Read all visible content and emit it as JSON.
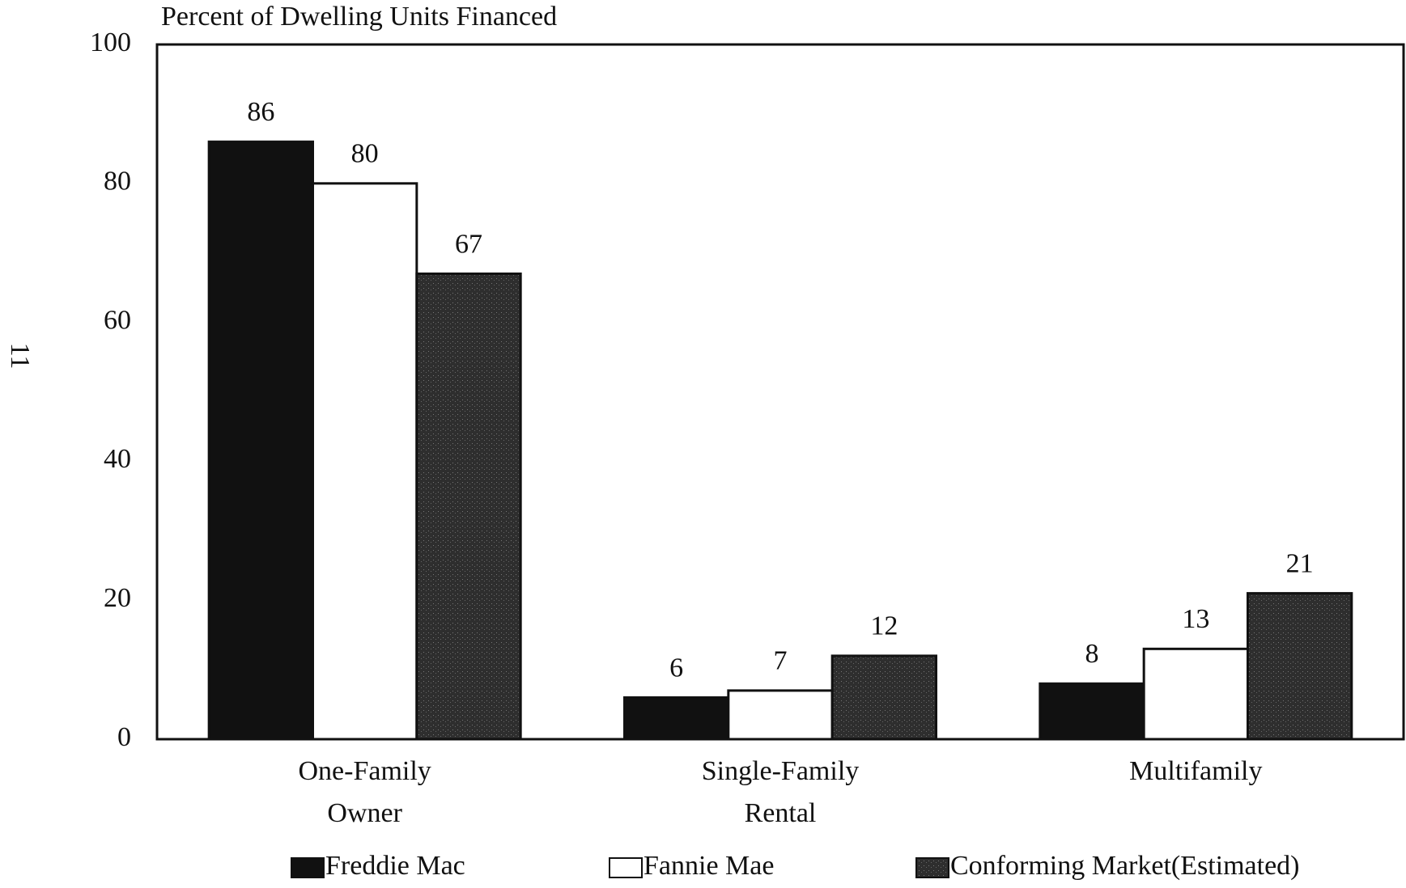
{
  "page_number": "11",
  "chart_data": {
    "type": "bar",
    "title": "Percent of Dwelling Units Financed",
    "categories": [
      "One-Family Owner",
      "Single-Family Rental",
      "Multifamily"
    ],
    "series": [
      {
        "name": "Freddie Mac",
        "color": "#111111",
        "values": [
          86,
          6,
          8
        ]
      },
      {
        "name": "Fannie Mae",
        "color": "#ffffff",
        "values": [
          80,
          7,
          13
        ]
      },
      {
        "name": "Conforming Market(Estimated)",
        "color": "#2e2e2e",
        "values": [
          67,
          12,
          21
        ]
      }
    ],
    "ylim": [
      0,
      100
    ],
    "yticks": [
      0,
      20,
      40,
      60,
      80,
      100
    ],
    "grid": false,
    "legend": "bottom"
  }
}
